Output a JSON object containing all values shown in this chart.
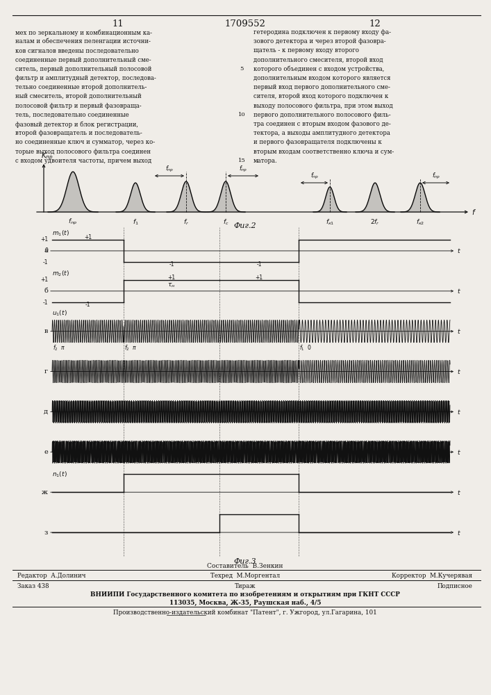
{
  "page_number_left": "11",
  "page_number_right": "12",
  "patent_number": "1709552",
  "text_left_lines": [
    "мех по зеркальному и комбинационным ка-",
    "налам и обеспечения пеленгации источни-",
    "ков сигналов введены последовательно",
    "соединенные первый дополнительный сме-",
    "ситель, первый дополнительный полосовой",
    "фильтр и амплитудный детектор, последова-",
    "тельно соединенные второй дополнитель-",
    "ный смеситель, второй дополнительный",
    "полосовой фильтр и первый фазовраща-",
    "тель, последовательно соединенные",
    "фазовый детектор и блок регистрации,",
    "второй фазовращатель и последователь-",
    "но соединенные ключ и сумматор, через ко-",
    "торые выход полосового фильтра соединен",
    "с входом удвоителя частоты, причем выход"
  ],
  "text_right_lines": [
    "гетеродина подключен к первому входу фа-",
    "зового детектора и через второй фазовра-",
    "щатель - к первому входу второго",
    "дополнительного смесителя, второй вход",
    "которого объединен с входом устройства,",
    "дополнительным входом которого является",
    "первый вход первого дополнительного сме-",
    "сителя, второй вход которого подключен к",
    "выходу полосового фильтра, при этом выход",
    "первого дополнительного полосового филь-",
    "тра соединен с вторым входом фазового де-",
    "тектора, а выходы амплитудного детектора",
    "и первого фазовращателя подключены к",
    "вторым входам соответственно ключа и сум-",
    "матора."
  ],
  "line_numbers": [
    5,
    10,
    15
  ],
  "fig2_label": "Фиг.2",
  "fig3_label": "Фиг.3",
  "sostavitel_line": "Составитель  В.Зенкин",
  "bottom_editor": "Редактор  А.Долинич",
  "bottom_techred": "Техред  М.Моргентал",
  "bottom_corrector": "Корректор  М.Кучерявая",
  "bottom_order": "Заказ 438",
  "bottom_tirazh": "Тираж",
  "bottom_podpisnoe": "Подписное",
  "bottom_vniiipi": "ВНИИПИ Государственного комитета по изобретениям и открытиям при ГКНТ СССР",
  "bottom_address": "113035, Москва, Ж-35, Раушская наб., 4/5",
  "bottom_kombinat": "Производственно-издательский комбинат \"Патент\", г. Ужгород, ул.Гагарина, 101",
  "bg_color": "#f0ede8",
  "text_color": "#111111"
}
